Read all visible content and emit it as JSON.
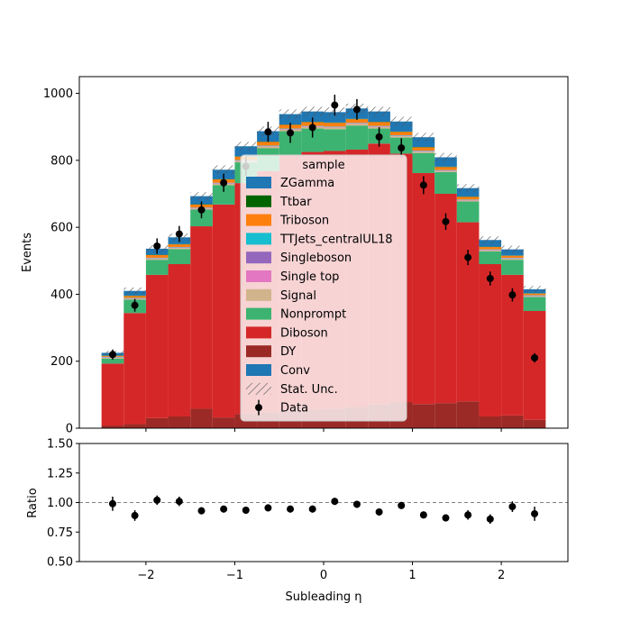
{
  "chart_data": [
    {
      "type": "stacked_histogram",
      "ylabel": "Events",
      "ylim": [
        0,
        1050
      ],
      "xlim": [
        -2.75,
        2.75
      ],
      "yticks": [
        0,
        200,
        400,
        600,
        800,
        1000
      ],
      "bin_edges": [
        -2.5,
        -2.25,
        -2.0,
        -1.75,
        -1.5,
        -1.25,
        -1.0,
        -0.75,
        -0.5,
        -0.25,
        0.0,
        0.25,
        0.5,
        0.75,
        1.0,
        1.25,
        1.5,
        1.75,
        2.0,
        2.25,
        2.5
      ],
      "series": [
        {
          "name": "DY",
          "color": "#9b2a26",
          "values": [
            8,
            12,
            30,
            35,
            58,
            32,
            42,
            48,
            52,
            55,
            58,
            62,
            72,
            78,
            72,
            75,
            80,
            35,
            38,
            25
          ]
        },
        {
          "name": "Diboson",
          "color": "#d62728",
          "values": [
            185,
            332,
            428,
            455,
            545,
            636,
            690,
            720,
            765,
            770,
            770,
            770,
            778,
            742,
            690,
            625,
            535,
            455,
            420,
            325
          ]
        },
        {
          "name": "Nonprompt",
          "color": "#3cb371",
          "values": [
            15,
            40,
            45,
            45,
            50,
            58,
            62,
            68,
            70,
            70,
            65,
            72,
            45,
            48,
            60,
            65,
            62,
            38,
            45,
            42
          ]
        },
        {
          "name": "Signal",
          "color": "#d2b48c",
          "values": [
            2,
            2,
            3,
            3,
            3,
            4,
            4,
            5,
            5,
            5,
            5,
            5,
            5,
            4,
            4,
            3,
            3,
            3,
            3,
            2
          ]
        },
        {
          "name": "Single top",
          "color": "#e377c2",
          "values": [
            1,
            1,
            1,
            1,
            1,
            1,
            1,
            1,
            1,
            1,
            1,
            1,
            1,
            1,
            1,
            1,
            1,
            1,
            1,
            1
          ]
        },
        {
          "name": "Singleboson",
          "color": "#9467bd",
          "values": [
            1,
            1,
            1,
            1,
            1,
            1,
            1,
            1,
            1,
            1,
            1,
            1,
            1,
            1,
            1,
            1,
            1,
            1,
            1,
            1
          ]
        },
        {
          "name": "TTJets_centralUL18",
          "color": "#17becf",
          "values": [
            1,
            1,
            1,
            1,
            1,
            1,
            1,
            1,
            1,
            1,
            1,
            1,
            1,
            1,
            1,
            1,
            1,
            1,
            1,
            1
          ]
        },
        {
          "name": "Triboson",
          "color": "#ff7f0e",
          "values": [
            3,
            6,
            8,
            8,
            9,
            10,
            10,
            11,
            11,
            11,
            11,
            11,
            11,
            10,
            10,
            9,
            8,
            7,
            6,
            5
          ]
        },
        {
          "name": "Ttbar",
          "color": "#006400",
          "values": [
            1,
            1,
            1,
            1,
            1,
            1,
            1,
            1,
            1,
            1,
            1,
            1,
            1,
            1,
            1,
            1,
            1,
            1,
            1,
            1
          ]
        },
        {
          "name": "ZGamma",
          "color": "#1f77b4",
          "values": [
            8,
            14,
            18,
            20,
            24,
            28,
            30,
            31,
            31,
            31,
            31,
            31,
            31,
            30,
            29,
            28,
            25,
            20,
            18,
            12
          ]
        }
      ],
      "stat_unc": [
        6,
        10,
        11,
        11,
        12,
        13,
        13,
        14,
        14,
        14,
        14,
        14,
        14,
        14,
        13,
        13,
        12,
        11,
        11,
        10
      ],
      "data": {
        "name": "Data",
        "x": [
          -2.375,
          -2.125,
          -1.875,
          -1.625,
          -1.375,
          -1.125,
          -0.875,
          -0.625,
          -0.375,
          -0.125,
          0.125,
          0.375,
          0.625,
          0.875,
          1.125,
          1.375,
          1.625,
          1.875,
          2.125,
          2.375
        ],
        "y": [
          220,
          367,
          544,
          580,
          652,
          733,
          782,
          885,
          882,
          898,
          965,
          952,
          870,
          837,
          726,
          617,
          510,
          447,
          398,
          210
        ],
        "yerr": [
          15,
          19,
          23,
          24,
          25,
          27,
          28,
          30,
          30,
          30,
          31,
          31,
          29,
          29,
          27,
          25,
          23,
          21,
          20,
          14
        ]
      },
      "legend": {
        "title": "sample",
        "entries": [
          {
            "label": "ZGamma",
            "color": "#1f77b4",
            "kind": "patch"
          },
          {
            "label": "Ttbar",
            "color": "#006400",
            "kind": "patch"
          },
          {
            "label": "Triboson",
            "color": "#ff7f0e",
            "kind": "patch"
          },
          {
            "label": "TTJets_centralUL18",
            "color": "#17becf",
            "kind": "patch"
          },
          {
            "label": "Singleboson",
            "color": "#9467bd",
            "kind": "patch"
          },
          {
            "label": "Single top",
            "color": "#e377c2",
            "kind": "patch"
          },
          {
            "label": "Signal",
            "color": "#d2b48c",
            "kind": "patch"
          },
          {
            "label": "Nonprompt",
            "color": "#3cb371",
            "kind": "patch"
          },
          {
            "label": "Diboson",
            "color": "#d62728",
            "kind": "patch"
          },
          {
            "label": "DY",
            "color": "#9b2a26",
            "kind": "patch"
          },
          {
            "label": "Conv",
            "color": "#1f77b4",
            "kind": "patch"
          },
          {
            "label": "Stat. Unc.",
            "color": "#555555",
            "kind": "hatch"
          },
          {
            "label": "Data",
            "color": "#000000",
            "kind": "marker"
          }
        ],
        "placement": "center"
      }
    },
    {
      "type": "scatter",
      "xlabel": "Subleading η",
      "ylabel": "Ratio",
      "ylim": [
        0.5,
        1.5
      ],
      "xlim": [
        -2.75,
        2.75
      ],
      "yticks": [
        "0.50",
        "0.75",
        "1.00",
        "1.25",
        "1.50"
      ],
      "xticks": [
        "−2",
        "−1",
        "0",
        "1",
        "2"
      ],
      "reference_line": 1.0,
      "x": [
        -2.375,
        -2.125,
        -1.875,
        -1.625,
        -1.375,
        -1.125,
        -0.875,
        -0.625,
        -0.375,
        -0.125,
        0.125,
        0.375,
        0.625,
        0.875,
        1.125,
        1.375,
        1.625,
        1.875,
        2.125,
        2.375
      ],
      "y": [
        0.99,
        0.89,
        1.02,
        1.01,
        0.93,
        0.945,
        0.935,
        0.955,
        0.945,
        0.945,
        1.01,
        0.985,
        0.92,
        0.975,
        0.895,
        0.87,
        0.895,
        0.86,
        0.965,
        0.905
      ],
      "yerr": [
        0.06,
        0.045,
        0.04,
        0.04,
        0.03,
        0.03,
        0.03,
        0.03,
        0.03,
        0.03,
        0.03,
        0.03,
        0.03,
        0.03,
        0.03,
        0.03,
        0.04,
        0.04,
        0.045,
        0.06
      ]
    }
  ]
}
